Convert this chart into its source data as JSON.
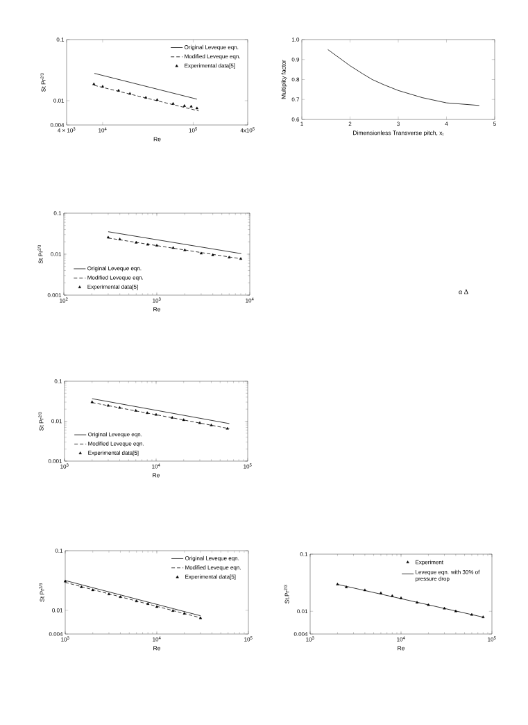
{
  "chart_data": [
    {
      "type": "line",
      "xlabel": "Re",
      "ylabel": "St Pr$^{2/3}$",
      "log": "xy",
      "xlim": [
        4000,
        400000
      ],
      "ylim": [
        0.004,
        0.1
      ],
      "xticks": [
        {
          "value": 4000,
          "label": "4 × 10$^{3}$"
        },
        {
          "value": 10000,
          "label": "10$^{4}$"
        },
        {
          "value": 100000,
          "label": "10$^{5}$"
        },
        {
          "value": 400000,
          "label": "4x10$^{5}$"
        }
      ],
      "yticks": [
        0.004,
        0.01,
        0.1
      ],
      "legend": "top right",
      "series": [
        {
          "name": "Original Leveque eqn.",
          "type": "line",
          "color": "#000000",
          "line_style": "solid",
          "x": [
            8100,
            110000
          ],
          "values": [
            0.028,
            0.0106
          ]
        },
        {
          "name": "Modified Leveque eqn.",
          "type": "line",
          "color": "#000000",
          "line_style": "dashed",
          "x": [
            8100,
            115000
          ],
          "values": [
            0.0178,
            0.0068
          ]
        },
        {
          "name": "Experimental data[5]",
          "type": "scatter",
          "color": "#000000",
          "marker": "triangle",
          "x": [
            8000,
            10000,
            15000,
            20000,
            30000,
            40000,
            60000,
            80000,
            95000,
            110000
          ],
          "values": [
            0.0186,
            0.017,
            0.0146,
            0.013,
            0.0112,
            0.0103,
            0.0089,
            0.0082,
            0.008,
            0.0075
          ]
        }
      ]
    },
    {
      "type": "line",
      "xlabel": "Dimensionless Transverse pitch, x$_{t}$",
      "ylabel": "Multiplity factor",
      "xlim": [
        1,
        5
      ],
      "ylim": [
        0.6,
        1.0
      ],
      "xticks": [
        1,
        2,
        3,
        4,
        5
      ],
      "yticks": [
        0.6,
        0.7,
        0.8,
        0.9,
        {
          "value": 1.0,
          "label": "1.0"
        }
      ],
      "series": [
        {
          "type": "line",
          "color": "#000000",
          "line_style": "solid",
          "x": [
            1.54,
            2.0,
            2.26,
            2.46,
            2.7,
            3.0,
            3.5,
            4.0,
            4.68
          ],
          "values": [
            0.95,
            0.869,
            0.829,
            0.8,
            0.774,
            0.745,
            0.709,
            0.683,
            0.67
          ]
        }
      ]
    },
    {
      "type": "line",
      "xlabel": "Re",
      "ylabel": "St Pr$^{2/3}$",
      "log": "xy",
      "xlim": [
        100,
        10000
      ],
      "ylim": [
        0.001,
        0.1
      ],
      "xticks": [
        {
          "value": 100,
          "label": "10$^{2}$"
        },
        {
          "value": 1000,
          "label": "10$^{3}$"
        },
        {
          "value": 10000,
          "label": "10$^{4}$"
        }
      ],
      "yticks": [
        0.001,
        0.01,
        0.1
      ],
      "legend": "bottom left",
      "series": [
        {
          "name": "Original Leveque eqn.",
          "type": "line",
          "color": "#000000",
          "line_style": "solid",
          "x": [
            300,
            8100
          ],
          "values": [
            0.0353,
            0.0103
          ]
        },
        {
          "name": "Modified Leveque eqn.",
          "type": "line",
          "color": "#000000",
          "line_style": "dashed",
          "x": [
            300,
            8100
          ],
          "values": [
            0.0248,
            0.0077
          ]
        },
        {
          "name": "Experimental data[5]",
          "type": "scatter",
          "color": "#000000",
          "marker": "triangle",
          "x": [
            300,
            400,
            600,
            800,
            1000,
            1500,
            2000,
            3000,
            4000,
            6000,
            8000
          ],
          "values": [
            0.0255,
            0.023,
            0.0192,
            0.0172,
            0.0162,
            0.0142,
            0.0125,
            0.0104,
            0.0095,
            0.0083,
            0.0077
          ]
        }
      ]
    },
    {
      "type": "line",
      "xlabel": "Re",
      "ylabel": "St Pr$^{2/3}$",
      "log": "xy",
      "xlim": [
        1000,
        100000
      ],
      "ylim": [
        0.001,
        0.1
      ],
      "xticks": [
        {
          "value": 1000,
          "label": "10$^{3}$"
        },
        {
          "value": 10000,
          "label": "10$^{4}$"
        },
        {
          "value": 100000,
          "label": "10$^{5}$"
        }
      ],
      "yticks": [
        0.001,
        0.01,
        0.1
      ],
      "legend": "bottom left",
      "series": [
        {
          "name": "Original Leveque eqn.",
          "type": "line",
          "color": "#000000",
          "line_style": "solid",
          "x": [
            2000,
            63000
          ],
          "values": [
            0.0366,
            0.0087
          ]
        },
        {
          "name": "Modified Leveque eqn.",
          "type": "line",
          "color": "#000000",
          "line_style": "dashed",
          "x": [
            2000,
            63000
          ],
          "values": [
            0.0292,
            0.0065
          ]
        },
        {
          "name": "Experimental data[5]",
          "type": "scatter",
          "color": "#000000",
          "marker": "triangle",
          "x": [
            2000,
            3000,
            4000,
            6000,
            8000,
            10000,
            15000,
            20000,
            30000,
            40000,
            60000
          ],
          "values": [
            0.03,
            0.0245,
            0.0217,
            0.0183,
            0.016,
            0.0145,
            0.0122,
            0.0107,
            0.009,
            0.0079,
            0.0065
          ]
        }
      ]
    },
    {
      "type": "line",
      "xlabel": "Re",
      "ylabel": "St Pr$^{2/3}$",
      "log": "xy",
      "xlim": [
        1000,
        100000
      ],
      "ylim": [
        0.004,
        0.1
      ],
      "xticks": [
        {
          "value": 1000,
          "label": "10$^{3}$"
        },
        {
          "value": 10000,
          "label": "10$^{4}$"
        },
        {
          "value": 100000,
          "label": "10$^{5}$"
        }
      ],
      "yticks": [
        0.004,
        0.01,
        0.1
      ],
      "legend": "top right",
      "series": [
        {
          "name": "Original Leveque eqn.",
          "type": "line",
          "color": "#000000",
          "line_style": "solid",
          "x": [
            1000,
            30000
          ],
          "values": [
            0.0316,
            0.0081
          ]
        },
        {
          "name": "Modified Leveque eqn.",
          "type": "line",
          "color": "#000000",
          "line_style": "dashed",
          "x": [
            1000,
            30000
          ],
          "values": [
            0.0294,
            0.0075
          ]
        },
        {
          "name": "Experimental data[5]",
          "type": "scatter",
          "color": "#000000",
          "marker": "triangle",
          "x": [
            1000,
            1500,
            2000,
            3000,
            4000,
            6000,
            8000,
            10000,
            15000,
            20000,
            30000
          ],
          "values": [
            0.0306,
            0.0245,
            0.0218,
            0.0186,
            0.0167,
            0.0142,
            0.0128,
            0.0114,
            0.0098,
            0.0088,
            0.0074
          ]
        }
      ]
    },
    {
      "type": "line",
      "xlabel": "Re",
      "ylabel": "St.Pr$^{2/3}$",
      "log": "xy",
      "xlim": [
        1000,
        100000
      ],
      "ylim": [
        0.004,
        0.1
      ],
      "xticks": [
        {
          "value": 1000,
          "label": "10$^{3}$"
        },
        {
          "value": 10000,
          "label": "10$^{4}$"
        },
        {
          "value": 100000,
          "label": "10$^{5}$"
        }
      ],
      "yticks": [
        0.004,
        0.01,
        0.1
      ],
      "legend": "top right",
      "series": [
        {
          "name": "Experiment",
          "type": "scatter",
          "color": "#000000",
          "marker": "triangle",
          "x": [
            2000,
            2500,
            4000,
            6000,
            8000,
            10000,
            15000,
            20000,
            30000,
            40000,
            60000,
            80000
          ],
          "values": [
            0.0296,
            0.0264,
            0.0234,
            0.0208,
            0.0186,
            0.017,
            0.0142,
            0.0129,
            0.0112,
            0.01,
            0.0087,
            0.0079
          ]
        },
        {
          "name": "Leveque eqn. with 30% of pressure drop",
          "type": "line",
          "color": "#000000",
          "line_style": "solid",
          "x": [
            2000,
            80000
          ],
          "values": [
            0.0296,
            0.0079
          ]
        }
      ]
    },
    {
      "type": "other",
      "annotations": [
        "α Δ"
      ]
    }
  ]
}
